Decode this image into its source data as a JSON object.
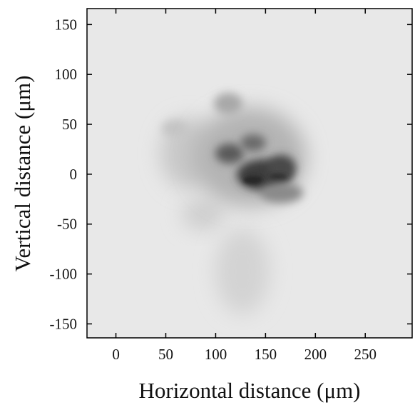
{
  "chart_data": {
    "type": "image",
    "x_label": "Horizontal distance (μm)",
    "y_label": "Vertical distance (μm)",
    "xlim": [
      -29,
      297
    ],
    "xticks": [
      0,
      50,
      100,
      150,
      200,
      250
    ],
    "ylim": [
      -164,
      166
    ],
    "yticks": [
      -150,
      -100,
      -50,
      0,
      50,
      100,
      150
    ]
  }
}
